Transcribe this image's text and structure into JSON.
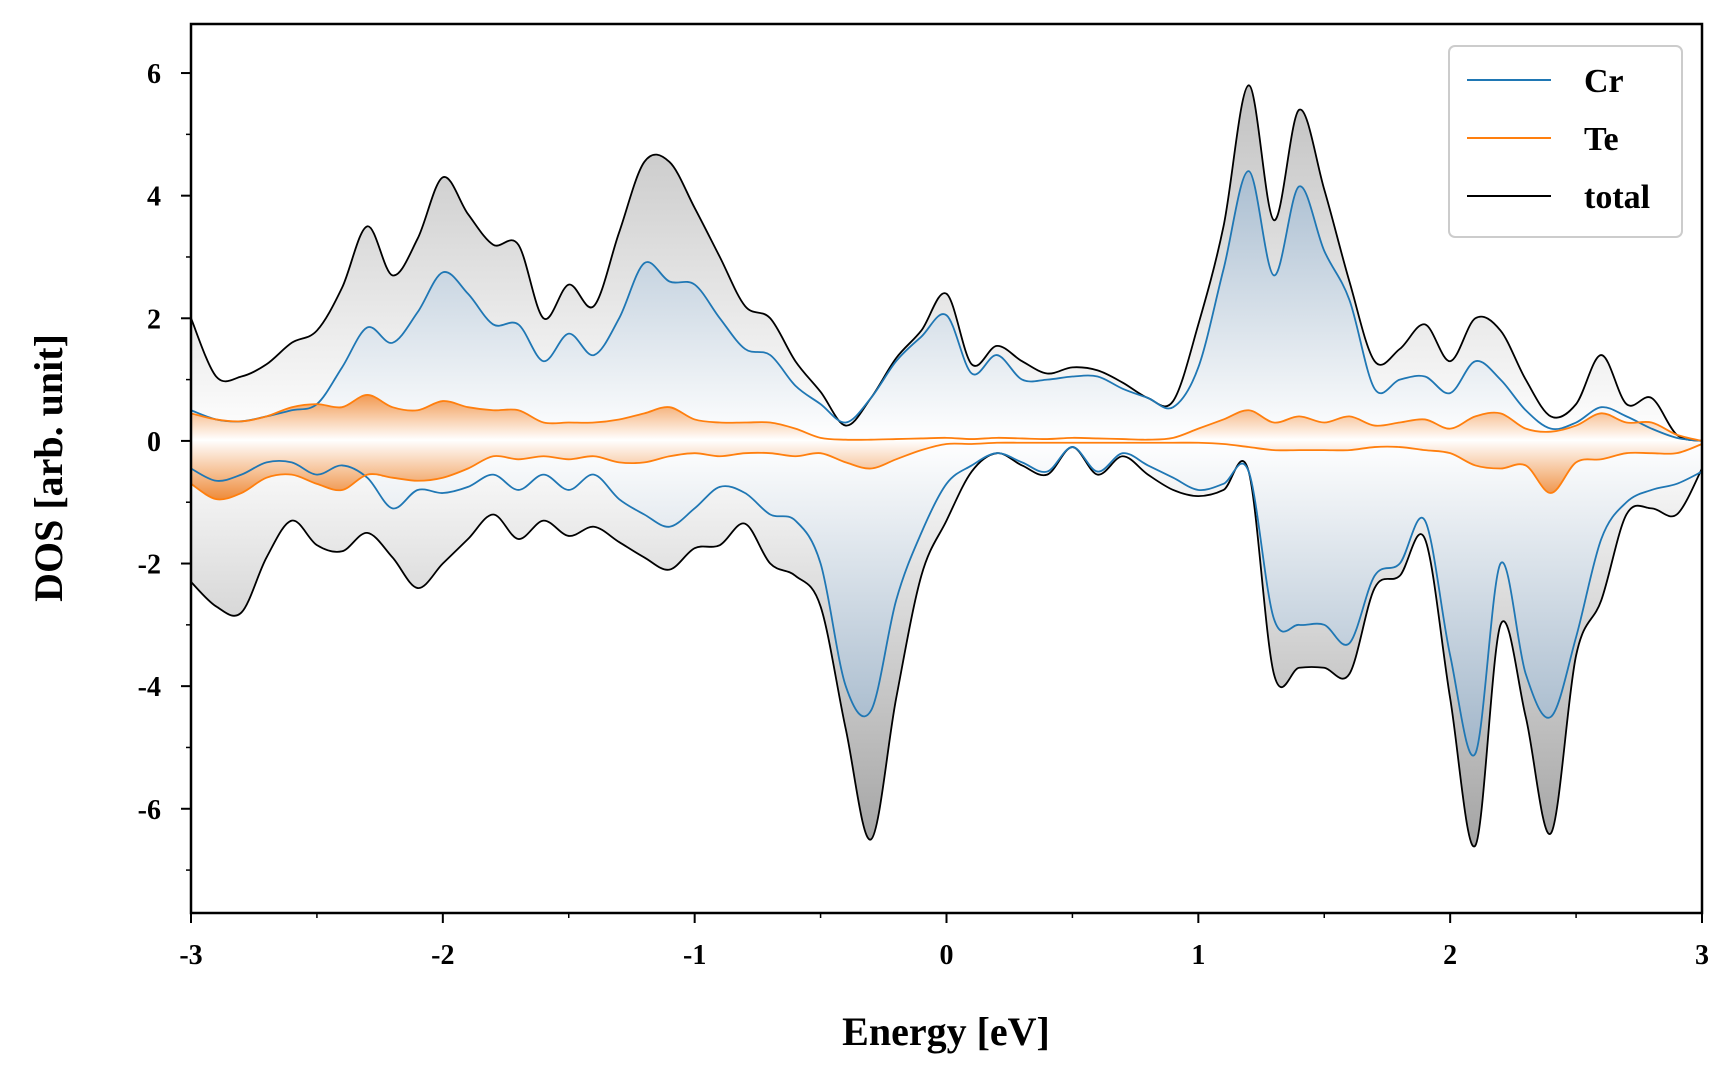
{
  "chart_data": {
    "type": "area",
    "title": "",
    "xlabel": "Energy [eV]",
    "ylabel": "DOS [arb. unit]",
    "xlim": [
      -3,
      3
    ],
    "ylim": [
      -7.7,
      6.8
    ],
    "grid": false,
    "legend_position": "top-right",
    "x_ticks": [
      -3,
      -2,
      -1,
      0,
      1,
      2,
      3
    ],
    "x_tick_labels": [
      "-3",
      "-2",
      "-1",
      "0",
      "1",
      "2",
      "3"
    ],
    "y_ticks": [
      -6,
      -4,
      -2,
      0,
      2,
      4,
      6
    ],
    "y_tick_labels": [
      "-6",
      "-4",
      "-2",
      "0",
      "2",
      "4",
      "6"
    ],
    "x": [
      -3.0,
      -2.9,
      -2.8,
      -2.7,
      -2.6,
      -2.5,
      -2.4,
      -2.3,
      -2.2,
      -2.1,
      -2.0,
      -1.9,
      -1.8,
      -1.7,
      -1.6,
      -1.5,
      -1.4,
      -1.3,
      -1.2,
      -1.1,
      -1.0,
      -0.9,
      -0.8,
      -0.7,
      -0.6,
      -0.5,
      -0.4,
      -0.3,
      -0.2,
      -0.1,
      0.0,
      0.1,
      0.2,
      0.3,
      0.4,
      0.5,
      0.6,
      0.7,
      0.8,
      0.9,
      1.0,
      1.1,
      1.2,
      1.3,
      1.4,
      1.5,
      1.6,
      1.7,
      1.8,
      1.9,
      2.0,
      2.1,
      2.2,
      2.3,
      2.4,
      2.5,
      2.6,
      2.7,
      2.8,
      2.9,
      3.0
    ],
    "series": [
      {
        "name": "Cr",
        "color": "#1f77b4",
        "spin_up": [
          0.5,
          0.35,
          0.32,
          0.4,
          0.5,
          0.6,
          1.2,
          1.85,
          1.6,
          2.1,
          2.75,
          2.4,
          1.9,
          1.9,
          1.3,
          1.75,
          1.4,
          2.0,
          2.9,
          2.6,
          2.55,
          2.0,
          1.5,
          1.4,
          0.9,
          0.6,
          0.3,
          0.7,
          1.3,
          1.7,
          2.05,
          1.1,
          1.4,
          1.0,
          1.0,
          1.05,
          1.05,
          0.85,
          0.7,
          0.55,
          1.2,
          2.8,
          4.4,
          2.7,
          4.15,
          3.1,
          2.3,
          0.85,
          1.0,
          1.05,
          0.78,
          1.3,
          1.0,
          0.5,
          0.2,
          0.3,
          0.55,
          0.4,
          0.2,
          0.05,
          0.0
        ],
        "spin_down": [
          -0.45,
          -0.65,
          -0.55,
          -0.35,
          -0.35,
          -0.55,
          -0.4,
          -0.6,
          -1.1,
          -0.8,
          -0.85,
          -0.75,
          -0.55,
          -0.8,
          -0.55,
          -0.8,
          -0.55,
          -0.95,
          -1.2,
          -1.4,
          -1.1,
          -0.75,
          -0.85,
          -1.2,
          -1.3,
          -2.0,
          -4.0,
          -4.4,
          -2.6,
          -1.5,
          -0.7,
          -0.4,
          -0.2,
          -0.35,
          -0.5,
          -0.1,
          -0.5,
          -0.2,
          -0.4,
          -0.6,
          -0.8,
          -0.7,
          -0.5,
          -2.9,
          -3.0,
          -3.0,
          -3.3,
          -2.2,
          -2.0,
          -1.3,
          -3.5,
          -5.1,
          -2.0,
          -3.8,
          -4.5,
          -3.2,
          -1.6,
          -1.0,
          -0.8,
          -0.7,
          -0.5
        ]
      },
      {
        "name": "Te",
        "color": "#ff7f0e",
        "spin_up": [
          0.45,
          0.35,
          0.32,
          0.4,
          0.55,
          0.6,
          0.55,
          0.75,
          0.55,
          0.5,
          0.65,
          0.55,
          0.5,
          0.5,
          0.3,
          0.3,
          0.3,
          0.35,
          0.45,
          0.55,
          0.35,
          0.3,
          0.3,
          0.3,
          0.2,
          0.05,
          0.02,
          0.02,
          0.03,
          0.04,
          0.05,
          0.03,
          0.05,
          0.04,
          0.03,
          0.05,
          0.04,
          0.03,
          0.02,
          0.05,
          0.2,
          0.35,
          0.5,
          0.3,
          0.4,
          0.3,
          0.4,
          0.25,
          0.3,
          0.35,
          0.2,
          0.4,
          0.45,
          0.2,
          0.15,
          0.25,
          0.45,
          0.3,
          0.3,
          0.1,
          0.0
        ],
        "spin_down": [
          -0.7,
          -0.95,
          -0.85,
          -0.6,
          -0.55,
          -0.7,
          -0.8,
          -0.55,
          -0.6,
          -0.65,
          -0.6,
          -0.45,
          -0.25,
          -0.3,
          -0.25,
          -0.3,
          -0.25,
          -0.35,
          -0.35,
          -0.25,
          -0.2,
          -0.25,
          -0.2,
          -0.2,
          -0.25,
          -0.2,
          -0.35,
          -0.45,
          -0.3,
          -0.15,
          -0.05,
          -0.05,
          -0.03,
          -0.03,
          -0.03,
          -0.03,
          -0.03,
          -0.03,
          -0.03,
          -0.03,
          -0.03,
          -0.05,
          -0.1,
          -0.15,
          -0.15,
          -0.15,
          -0.15,
          -0.1,
          -0.1,
          -0.15,
          -0.2,
          -0.4,
          -0.45,
          -0.4,
          -0.85,
          -0.35,
          -0.3,
          -0.2,
          -0.2,
          -0.2,
          -0.05
        ]
      },
      {
        "name": "total",
        "color": "#000000",
        "spin_up": [
          2.0,
          1.05,
          1.05,
          1.25,
          1.6,
          1.8,
          2.5,
          3.5,
          2.7,
          3.3,
          4.3,
          3.7,
          3.2,
          3.2,
          2.0,
          2.55,
          2.2,
          3.4,
          4.55,
          4.55,
          3.8,
          3.0,
          2.2,
          2.0,
          1.3,
          0.8,
          0.25,
          0.7,
          1.35,
          1.8,
          2.4,
          1.25,
          1.55,
          1.3,
          1.1,
          1.2,
          1.15,
          0.95,
          0.7,
          0.65,
          1.9,
          3.5,
          5.8,
          3.6,
          5.4,
          4.1,
          2.6,
          1.3,
          1.5,
          1.9,
          1.3,
          2.0,
          1.8,
          1.0,
          0.4,
          0.6,
          1.4,
          0.6,
          0.7,
          0.1,
          0.0
        ],
        "spin_down": [
          -2.3,
          -2.7,
          -2.8,
          -1.9,
          -1.3,
          -1.7,
          -1.8,
          -1.5,
          -1.9,
          -2.4,
          -2.0,
          -1.6,
          -1.2,
          -1.6,
          -1.3,
          -1.55,
          -1.4,
          -1.65,
          -1.9,
          -2.1,
          -1.75,
          -1.7,
          -1.35,
          -2.0,
          -2.2,
          -2.7,
          -4.7,
          -6.5,
          -4.2,
          -2.2,
          -1.3,
          -0.5,
          -0.2,
          -0.4,
          -0.55,
          -0.1,
          -0.55,
          -0.25,
          -0.55,
          -0.8,
          -0.9,
          -0.8,
          -0.5,
          -3.8,
          -3.7,
          -3.7,
          -3.8,
          -2.4,
          -2.2,
          -1.6,
          -4.2,
          -6.6,
          -3.0,
          -4.5,
          -6.4,
          -3.5,
          -2.6,
          -1.2,
          -1.1,
          -1.2,
          -0.45
        ]
      }
    ],
    "legend": [
      {
        "label": "Cr",
        "color": "#1f77b4"
      },
      {
        "label": "Te",
        "color": "#ff7f0e"
      },
      {
        "label": "total",
        "color": "#000000"
      }
    ]
  }
}
